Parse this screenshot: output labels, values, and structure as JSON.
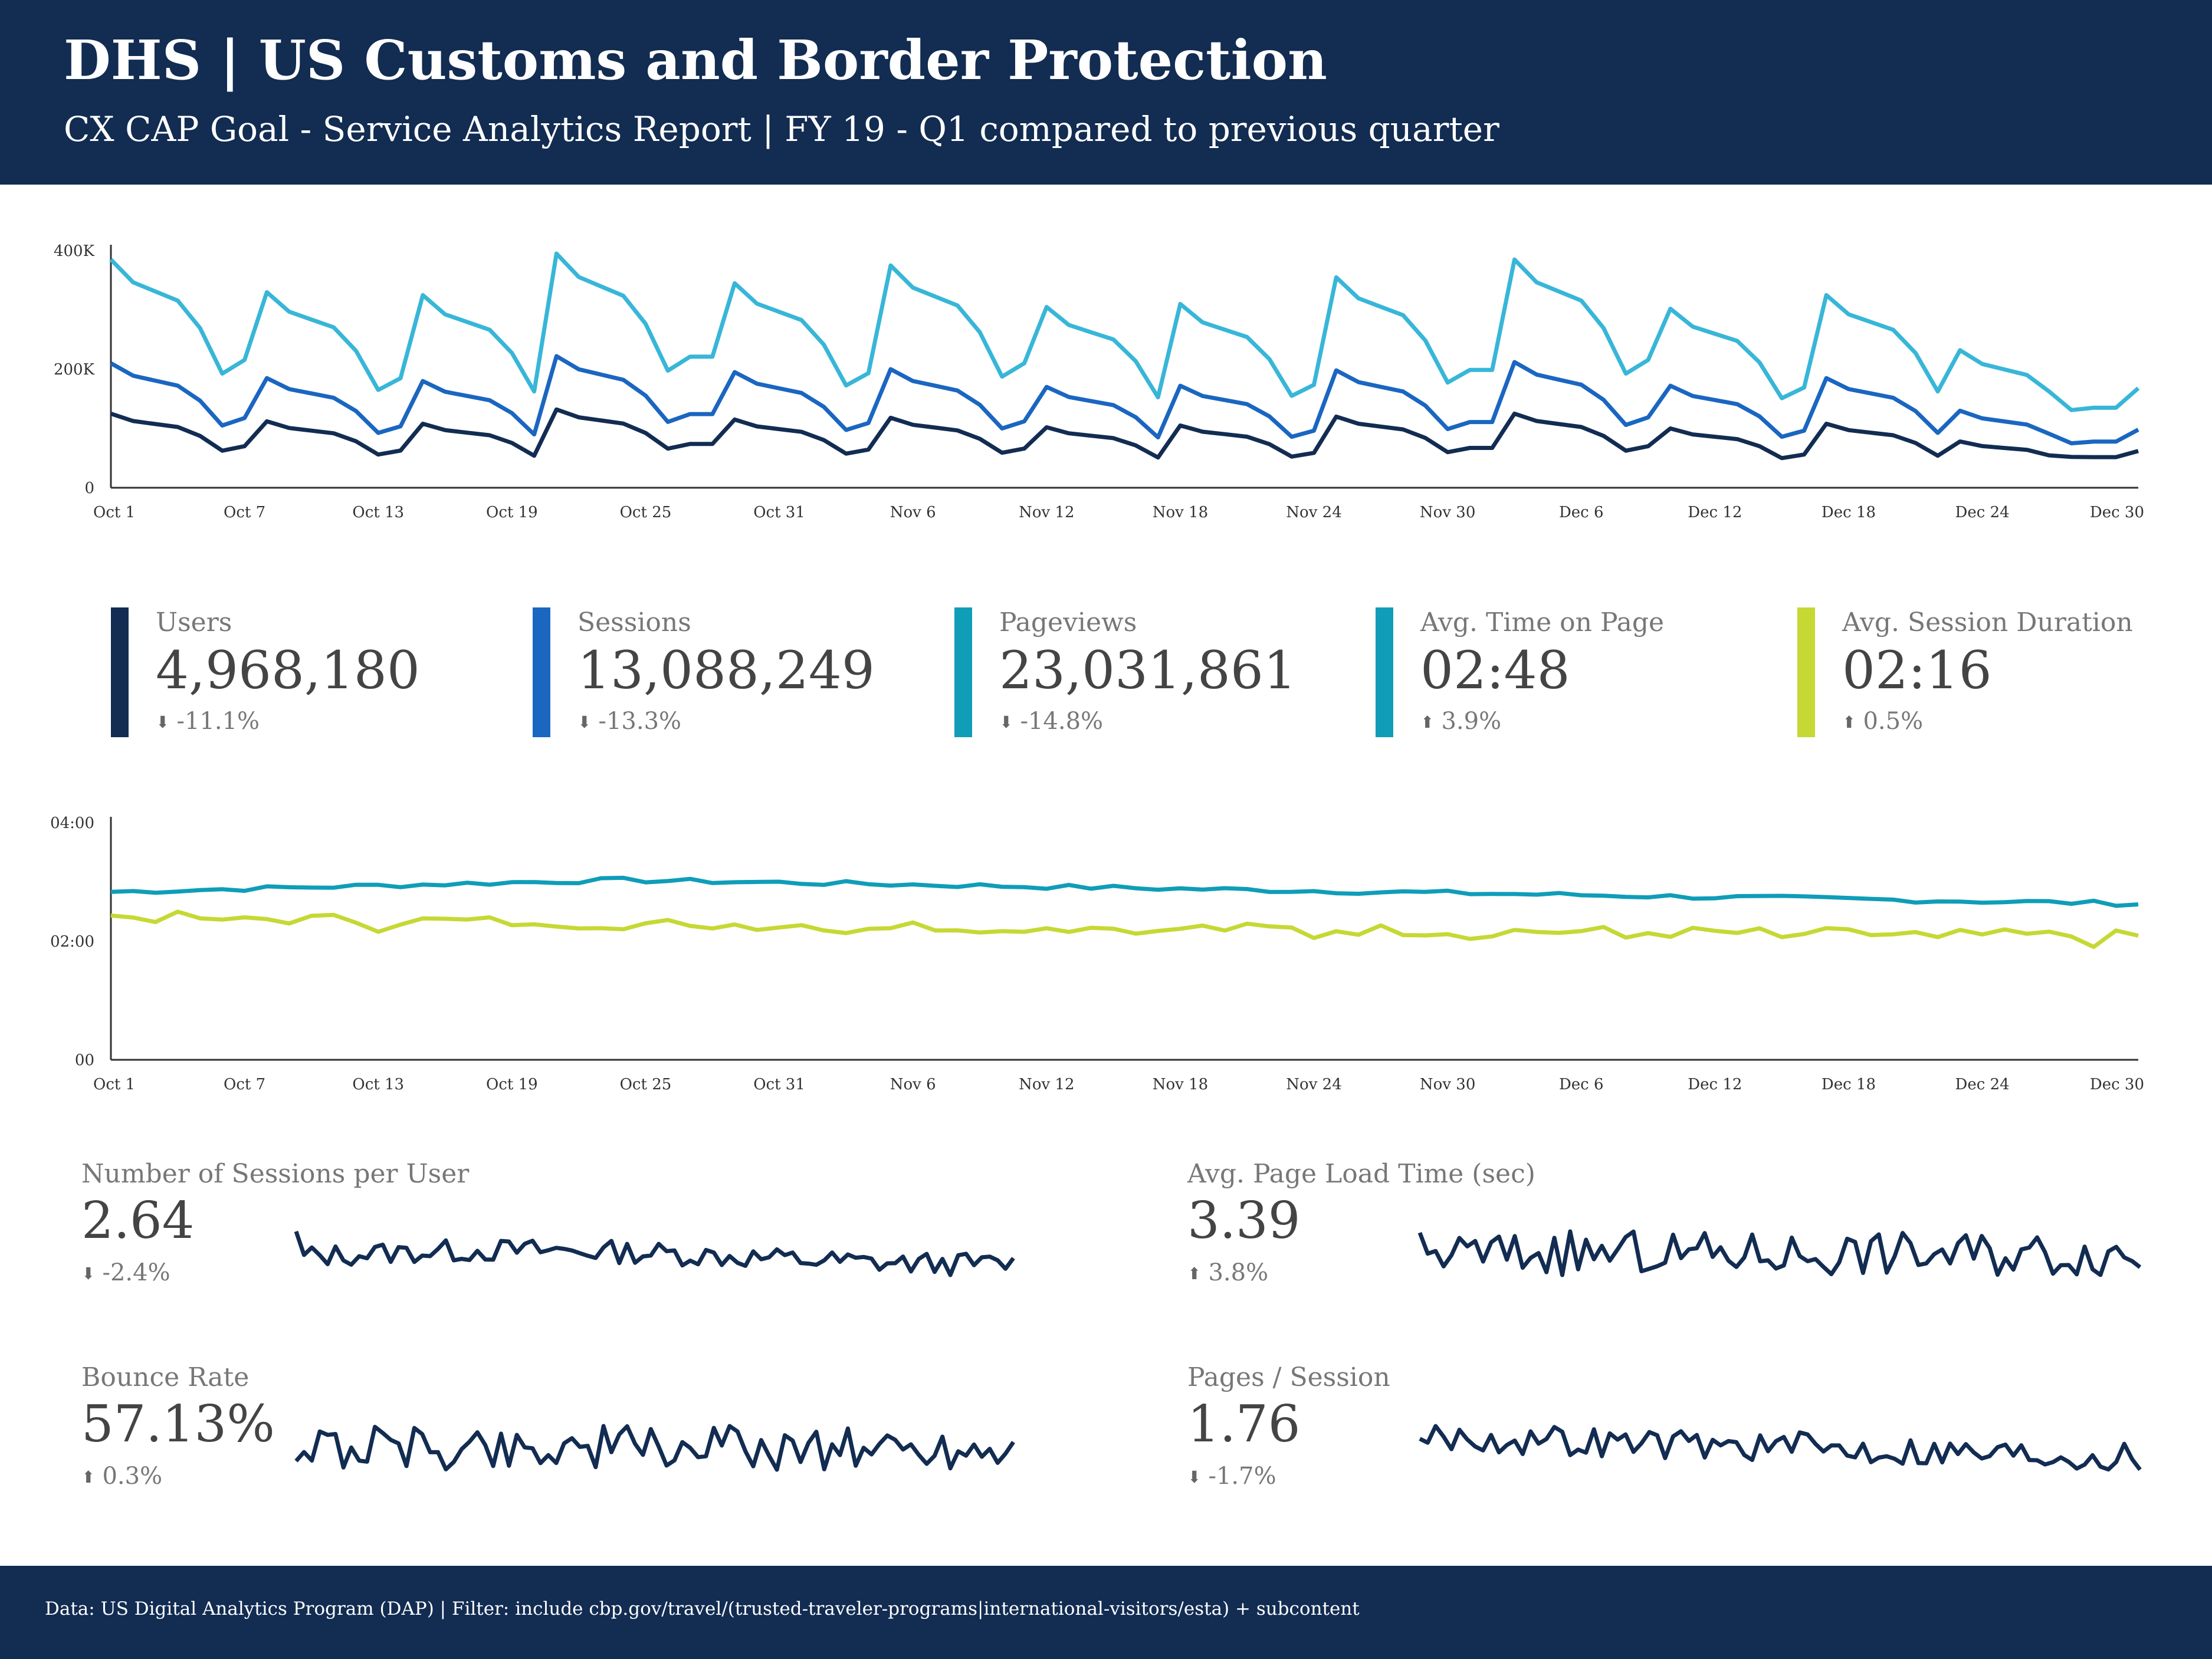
{
  "header": {
    "title": "DHS | US Customs and Border Protection",
    "subtitle": "CX CAP Goal - Service Analytics Report | FY 19 - Q1 compared to previous quarter"
  },
  "colors": {
    "navy": "#122c52",
    "users": "#122c52",
    "sessions": "#1a66c1",
    "pageviews": "#38b6d8",
    "time_on_page": "#0f9db8",
    "session_duration": "#c6d834",
    "spark": "#122c52"
  },
  "icons": {
    "down": "arrow-down-icon",
    "up": "arrow-up-icon"
  },
  "kpis": [
    {
      "label": "Users",
      "value": "4,968,180",
      "delta": "-11.1%",
      "direction": "down",
      "color": "#122c52"
    },
    {
      "label": "Sessions",
      "value": "13,088,249",
      "delta": "-13.3%",
      "direction": "down",
      "color": "#1a66c1"
    },
    {
      "label": "Pageviews",
      "value": "23,031,861",
      "delta": "-14.8%",
      "direction": "down",
      "color": "#0f9db8"
    },
    {
      "label": "Avg. Time on Page",
      "value": "02:48",
      "delta": "3.9%",
      "direction": "up",
      "color": "#0f9db8"
    },
    {
      "label": "Avg. Session Duration",
      "value": "02:16",
      "delta": "0.5%",
      "direction": "up",
      "color": "#c6d834"
    }
  ],
  "metrics": [
    {
      "label": "Number of Sessions per User",
      "value": "2.64",
      "delta": "-2.4%",
      "direction": "down"
    },
    {
      "label": "Avg. Page Load Time (sec)",
      "value": "3.39",
      "delta": "3.8%",
      "direction": "up"
    },
    {
      "label": "Bounce Rate",
      "value": "57.13%",
      "delta": "0.3%",
      "direction": "up"
    },
    {
      "label": "Pages / Session",
      "value": "1.76",
      "delta": "-1.7%",
      "direction": "down"
    }
  ],
  "footer": {
    "text": "Data: US Digital Analytics Program (DAP) | Filter: include cbp.gov/travel/(trusted-traveler-programs|international-visitors/esta) + subcontent"
  },
  "chart_data": [
    {
      "type": "line",
      "x_tick_labels": [
        "Oct 1",
        "Oct 7",
        "Oct 13",
        "Oct 19",
        "Oct 25",
        "Oct 31",
        "Nov 6",
        "Nov 12",
        "Nov 18",
        "Nov 24",
        "Nov 30",
        "Dec 6",
        "Dec 12",
        "Dec 18",
        "Dec 24",
        "Dec 30"
      ],
      "y_tick_labels": [
        "0",
        "200K",
        "400K"
      ],
      "ylim": [
        0,
        400000
      ],
      "weekly_peaks": [
        {
          "day": 1,
          "users": 125000,
          "sessions": 210000,
          "pageviews": 385000
        },
        {
          "day": 8,
          "users": 112000,
          "sessions": 185000,
          "pageviews": 330000
        },
        {
          "day": 15,
          "users": 108000,
          "sessions": 180000,
          "pageviews": 325000
        },
        {
          "day": 21,
          "users": 132000,
          "sessions": 222000,
          "pageviews": 395000
        },
        {
          "day": 29,
          "users": 115000,
          "sessions": 195000,
          "pageviews": 345000
        },
        {
          "day": 36,
          "users": 118000,
          "sessions": 200000,
          "pageviews": 375000
        },
        {
          "day": 43,
          "users": 102000,
          "sessions": 170000,
          "pageviews": 305000
        },
        {
          "day": 49,
          "users": 105000,
          "sessions": 172000,
          "pageviews": 310000
        },
        {
          "day": 56,
          "users": 120000,
          "sessions": 198000,
          "pageviews": 355000
        },
        {
          "day": 64,
          "users": 125000,
          "sessions": 212000,
          "pageviews": 385000
        },
        {
          "day": 71,
          "users": 100000,
          "sessions": 172000,
          "pageviews": 302000
        },
        {
          "day": 78,
          "users": 108000,
          "sessions": 185000,
          "pageviews": 325000
        },
        {
          "day": 84,
          "users": 78000,
          "sessions": 130000,
          "pageviews": 232000
        }
      ],
      "series": [
        {
          "name": "Users",
          "color": "#122c52",
          "lows": 48000,
          "end": 62000
        },
        {
          "name": "Sessions",
          "color": "#1a66c1",
          "lows": 75000,
          "end": 98000
        },
        {
          "name": "Pageviews",
          "color": "#38b6d8",
          "lows": 130000,
          "end": 168000
        }
      ]
    },
    {
      "type": "line",
      "x_tick_labels": [
        "Oct 1",
        "Oct 7",
        "Oct 13",
        "Oct 19",
        "Oct 25",
        "Oct 31",
        "Nov 6",
        "Nov 12",
        "Nov 18",
        "Nov 24",
        "Nov 30",
        "Dec 6",
        "Dec 12",
        "Dec 18",
        "Dec 24",
        "Dec 30"
      ],
      "y_tick_labels": [
        "00",
        "02:00",
        "04:00"
      ],
      "ylim_seconds": [
        0,
        240
      ],
      "series": [
        {
          "name": "Avg. Time on Page",
          "color": "#0f9db8",
          "start_seconds": 170,
          "mid_seconds": 182,
          "end_seconds": 158
        },
        {
          "name": "Avg. Session Duration",
          "color": "#c6d834",
          "start_seconds": 145,
          "mid_seconds": 138,
          "end_seconds": 125
        }
      ]
    },
    {
      "type": "line",
      "name": "Number of Sessions per User",
      "color": "#122c52",
      "points": 92,
      "center": 2.64
    },
    {
      "type": "line",
      "name": "Avg. Page Load Time (sec)",
      "color": "#122c52",
      "points": 92,
      "center": 3.39
    },
    {
      "type": "line",
      "name": "Bounce Rate",
      "color": "#122c52",
      "points": 92,
      "center": 57.13
    },
    {
      "type": "line",
      "name": "Pages / Session",
      "color": "#122c52",
      "points": 92,
      "center": 1.76
    }
  ]
}
